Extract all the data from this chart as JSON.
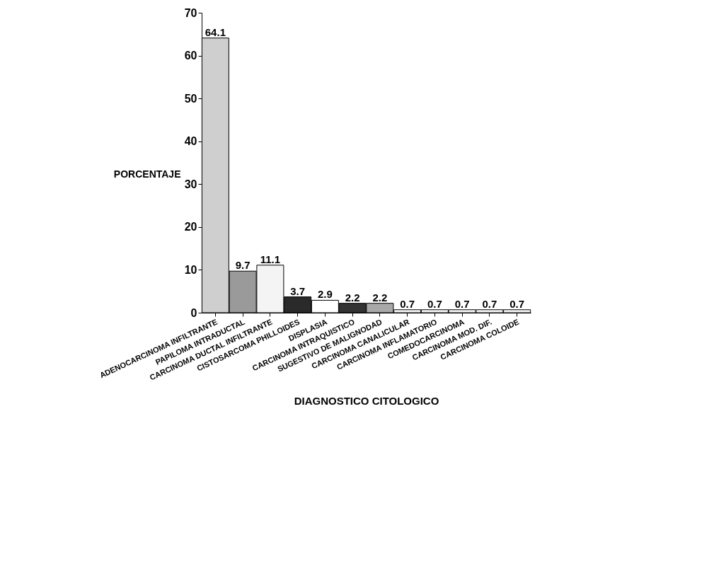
{
  "chart_data": {
    "type": "bar",
    "xlabel": "DIAGNOSTICO CITOLOGICO",
    "ylabel": "PORCENTAJE",
    "categories": [
      "ADENOCARCINOMA INFILTRANTE",
      "PAPILOMA INTRADUCTAL",
      "CARCINOMA DUCTAL INFILTRANTE",
      "CISTOSARCOMA PHILLOIDES",
      "DISPLASIA",
      "CARCINOMA INTRAQUISTICO",
      "SUGESTIVO DE MALIGNODAD",
      "CARCINOMA CANALICULAR",
      "CARCINOMA INFLAMATORIO",
      "COMEDOCARCINOMA",
      "CARCINOMA MOD. DIF.",
      "CARCINOMA COLOIDE"
    ],
    "values": [
      64.1,
      9.7,
      11.1,
      3.7,
      2.9,
      2.2,
      2.2,
      0.7,
      0.7,
      0.7,
      0.7,
      0.7
    ],
    "colors": [
      "#cfcfcf",
      "#9a9a9a",
      "#f4f4f4",
      "#2a2a2a",
      "#ffffff",
      "#333333",
      "#a8a8a8",
      "#f4f4f4",
      "#f4f4f4",
      "#f4f4f4",
      "#f4f4f4",
      "#f4f4f4"
    ],
    "ylim": [
      0,
      70
    ],
    "yticks": [
      0,
      10,
      20,
      30,
      40,
      50,
      60,
      70
    ],
    "grid": false,
    "data_labels": true
  }
}
